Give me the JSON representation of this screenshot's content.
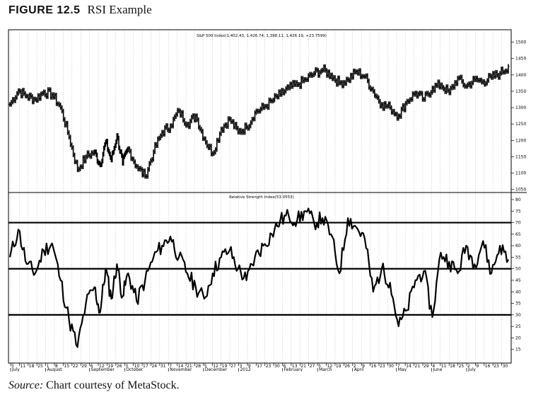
{
  "figure": {
    "number": "FIGURE 12.5",
    "title": "RSI Example"
  },
  "source": {
    "label": "Source:",
    "text": "Chart courtesy of MetaStock."
  },
  "chart_data": [
    {
      "type": "line",
      "title": "S&P 500 Index(1,402.43, 1,426.74, 1,398.11, 1,426.19, +23.7599)",
      "ylim": [
        1045,
        1510
      ],
      "y_ticks": [
        "1500",
        "1450",
        "1400",
        "1350",
        "1300",
        "1250",
        "1200",
        "1150",
        "1100",
        "1050"
      ],
      "x_range": [
        0,
        355
      ],
      "grid": true,
      "series": [
        {
          "x": [
            0,
            6,
            12,
            18,
            24,
            30,
            36,
            42,
            48,
            54,
            60,
            64,
            68,
            72,
            76,
            80,
            84,
            90,
            96,
            102,
            108,
            114,
            120,
            126,
            132,
            138,
            144,
            150,
            156,
            162,
            168,
            174,
            180,
            186,
            192,
            198,
            204,
            210,
            216,
            222,
            228,
            234,
            240,
            246,
            252,
            258,
            264,
            270,
            276,
            282,
            288,
            294,
            300,
            306,
            312,
            318,
            324,
            330,
            336,
            342,
            348,
            354
          ],
          "values": [
            1310,
            1352,
            1335,
            1325,
            1348,
            1340,
            1300,
            1210,
            1110,
            1150,
            1165,
            1125,
            1195,
            1140,
            1215,
            1130,
            1175,
            1120,
            1090,
            1165,
            1225,
            1245,
            1290,
            1250,
            1275,
            1205,
            1160,
            1235,
            1265,
            1225,
            1240,
            1285,
            1300,
            1320,
            1340,
            1360,
            1370,
            1385,
            1405,
            1415,
            1400,
            1375,
            1385,
            1410,
            1395,
            1350,
            1310,
            1300,
            1275,
            1320,
            1345,
            1325,
            1360,
            1370,
            1345,
            1390,
            1365,
            1385,
            1380,
            1392,
            1405,
            1426
          ]
        }
      ]
    },
    {
      "type": "line",
      "title": "Relative Strength Index(53.0553)",
      "ylim": [
        10,
        80
      ],
      "y_ticks": [
        "80",
        "75",
        "70",
        "65",
        "60",
        "55",
        "50",
        "45",
        "40",
        "35",
        "30",
        "25",
        "20",
        "15"
      ],
      "reference_lines": [
        70,
        50,
        30
      ],
      "x_range": [
        0,
        355
      ],
      "grid": true,
      "series": [
        {
          "x": [
            0,
            6,
            12,
            18,
            24,
            30,
            36,
            42,
            48,
            54,
            60,
            64,
            68,
            72,
            76,
            80,
            84,
            90,
            96,
            102,
            108,
            114,
            120,
            126,
            132,
            138,
            144,
            150,
            156,
            162,
            168,
            174,
            180,
            186,
            192,
            198,
            204,
            210,
            216,
            222,
            228,
            234,
            240,
            246,
            252,
            258,
            264,
            270,
            276,
            282,
            288,
            294,
            300,
            306,
            312,
            318,
            324,
            330,
            336,
            342,
            348,
            354
          ],
          "values": [
            55,
            67,
            52,
            48,
            58,
            61,
            45,
            28,
            16,
            35,
            42,
            31,
            50,
            37,
            52,
            38,
            48,
            36,
            45,
            55,
            60,
            64,
            55,
            48,
            42,
            37,
            48,
            55,
            58,
            50,
            45,
            55,
            60,
            65,
            71,
            73,
            71,
            75,
            70,
            72,
            65,
            48,
            72,
            68,
            63,
            40,
            50,
            44,
            25,
            32,
            45,
            49,
            29,
            57,
            53,
            48,
            60,
            52,
            62,
            48,
            60,
            54
          ]
        }
      ]
    }
  ],
  "x_axis": {
    "day_labels": [
      "5",
      "11",
      "18",
      "25",
      "1",
      "8",
      "15",
      "22",
      "29",
      "6",
      "12",
      "19",
      "26",
      "3",
      "10",
      "17",
      "24",
      "31",
      "7",
      "14",
      "21",
      "28",
      "5",
      "12",
      "19",
      "27",
      "3",
      "9",
      "17",
      "23",
      "30",
      "6",
      "13",
      "21",
      "27",
      "5",
      "12",
      "19",
      "26",
      "2",
      "9",
      "16",
      "23",
      "30",
      "7",
      "14",
      "21",
      "29",
      "4",
      "11",
      "18",
      "25",
      "2",
      "9",
      "16",
      "23",
      "30"
    ],
    "month_labels": [
      "July",
      "August",
      "September",
      "October",
      "November",
      "December",
      "2012",
      "February",
      "March",
      "April",
      "May",
      "June",
      "July"
    ]
  }
}
